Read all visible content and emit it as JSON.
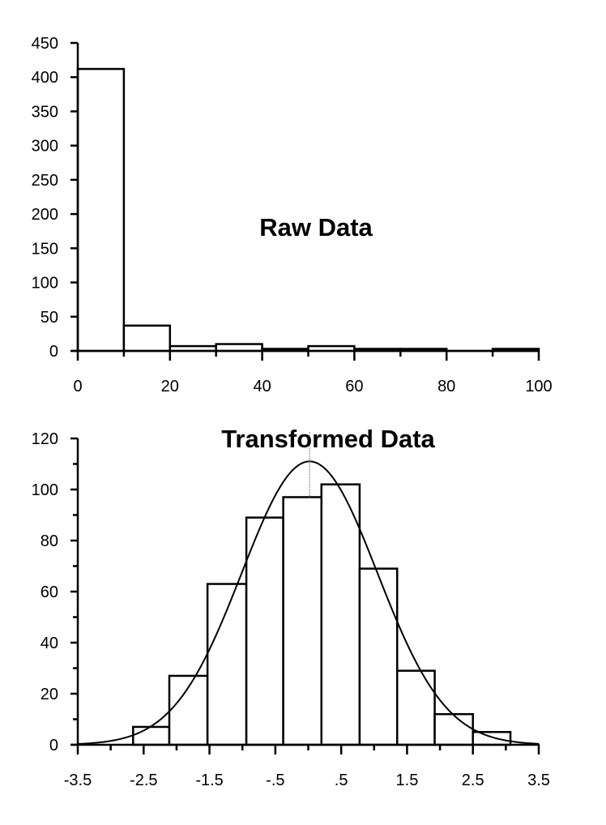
{
  "chart_data": [
    {
      "type": "bar",
      "subtype": "histogram",
      "title": "Raw Data",
      "xlabel": "",
      "ylabel": "",
      "xlim": [
        0,
        100
      ],
      "ylim": [
        0,
        450
      ],
      "x_ticks": [
        0,
        20,
        40,
        60,
        80,
        100
      ],
      "x_tick_labels": [
        "0",
        "20",
        "40",
        "60",
        "80",
        "100"
      ],
      "x_minor_step": 10,
      "y_ticks": [
        0,
        50,
        100,
        150,
        200,
        250,
        300,
        350,
        400,
        450
      ],
      "y_tick_labels": [
        "0",
        "50",
        "100",
        "150",
        "200",
        "250",
        "300",
        "350",
        "400",
        "450"
      ],
      "bins": [
        [
          0,
          10
        ],
        [
          10,
          20
        ],
        [
          20,
          30
        ],
        [
          30,
          40
        ],
        [
          40,
          50
        ],
        [
          50,
          60
        ],
        [
          60,
          70
        ],
        [
          70,
          80
        ],
        [
          80,
          90
        ],
        [
          90,
          100
        ]
      ],
      "values": [
        412,
        37,
        7,
        10,
        3,
        7,
        3,
        3,
        0,
        3
      ],
      "grid": false
    },
    {
      "type": "bar",
      "subtype": "histogram-with-normal-fit",
      "title": "Transformed Data",
      "xlabel": "",
      "ylabel": "",
      "xlim": [
        -3.5,
        3.5
      ],
      "ylim": [
        0,
        120
      ],
      "x_ticks": [
        -3.5,
        -2.5,
        -1.5,
        -0.5,
        0.5,
        1.5,
        2.5,
        3.5
      ],
      "x_tick_labels": [
        "-3.5",
        "-2.5",
        "-1.5",
        "-.5",
        ".5",
        "1.5",
        "2.5",
        "3.5"
      ],
      "x_minor_step": 0.5,
      "y_ticks": [
        0,
        20,
        40,
        60,
        80,
        100,
        120
      ],
      "y_tick_labels": [
        "0",
        "20",
        "40",
        "60",
        "80",
        "100",
        "120"
      ],
      "y_minor_step": 10,
      "bin_edges": [
        -2.66,
        -2.11,
        -1.53,
        -0.94,
        -0.38,
        0.2,
        0.78,
        1.35,
        1.92,
        2.5,
        3.07
      ],
      "values": [
        7,
        27,
        63,
        89,
        97,
        102,
        69,
        29,
        12,
        5
      ],
      "normal_curve": {
        "mean": 0.02,
        "sd": 1.03,
        "peak": 111
      },
      "mean_line": 0.02,
      "grid": false
    }
  ]
}
